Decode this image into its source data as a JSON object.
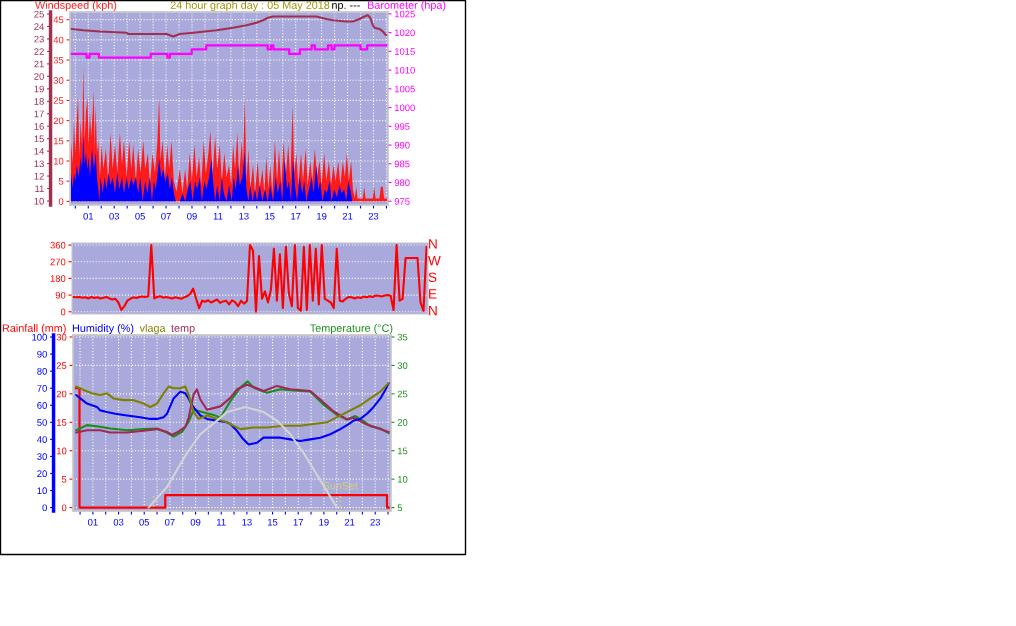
{
  "chart_data": [
    {
      "type": "area",
      "title": "24 hour graph day : 05 May 2018",
      "ylabel": "Windspeed (kph)",
      "y2label": "Barometer (hpa)",
      "annotations": [
        "np. ---"
      ],
      "xlim": [
        -0.41,
        24.12
      ],
      "xticks": [
        {
          "value": 0,
          "label": null
        },
        {
          "value": 1,
          "label": "01"
        },
        {
          "value": 2,
          "label": null
        },
        {
          "value": 3,
          "label": "03"
        },
        {
          "value": 4,
          "label": null
        },
        {
          "value": 5,
          "label": "05"
        },
        {
          "value": 6,
          "label": null
        },
        {
          "value": 7,
          "label": "07"
        },
        {
          "value": 8,
          "label": null
        },
        {
          "value": 9,
          "label": "09"
        },
        {
          "value": 10,
          "label": null
        },
        {
          "value": 11,
          "label": "11"
        },
        {
          "value": 12,
          "label": null
        },
        {
          "value": 13,
          "label": "13"
        },
        {
          "value": 14,
          "label": null
        },
        {
          "value": 15,
          "label": "15"
        },
        {
          "value": 16,
          "label": null
        },
        {
          "value": 17,
          "label": "17"
        },
        {
          "value": 18,
          "label": null
        },
        {
          "value": 19,
          "label": "19"
        },
        {
          "value": 20,
          "label": null
        },
        {
          "value": 21,
          "label": "21"
        },
        {
          "value": 22,
          "label": null
        },
        {
          "value": 23,
          "label": "23"
        },
        {
          "value": 24,
          "label": null
        }
      ],
      "ylim": [
        -0.9,
        46.9
      ],
      "yticks": [
        0,
        5,
        10,
        15,
        20,
        25,
        30,
        35,
        40,
        45
      ],
      "y2lim": [
        974.0,
        1025.5
      ],
      "y2ticks": [
        975,
        980,
        985,
        990,
        995,
        1000,
        1005,
        1010,
        1015,
        1020,
        1025
      ],
      "y3lim": [
        9.68,
        25.16
      ],
      "y3ticks": [
        10,
        11,
        12,
        13,
        14,
        15,
        16,
        17,
        18,
        19,
        20,
        21,
        22,
        23,
        24,
        25
      ],
      "grid": true,
      "series": [
        {
          "type": "area",
          "color": "#ff1a1a",
          "x": [
            -0.33,
            -0.2,
            -0.1,
            0.0,
            0.11,
            0.21,
            0.31,
            0.41,
            0.52,
            0.62,
            0.72,
            0.82,
            0.93,
            1.03,
            1.13,
            1.23,
            1.34,
            1.41,
            1.49,
            1.57,
            1.67,
            1.77,
            1.9,
            2.03,
            2.16,
            2.36,
            2.54,
            2.72,
            2.88,
            3.06,
            3.24,
            3.44,
            3.6,
            3.75,
            3.96,
            4.16,
            4.32,
            4.47,
            4.67,
            4.85,
            5.03,
            5.24,
            5.39,
            5.6,
            5.75,
            5.96,
            6.14,
            6.32,
            6.47,
            6.57,
            6.73,
            6.91,
            7.09,
            7.24,
            7.42,
            7.6,
            7.81,
            8.06,
            8.27,
            8.47,
            8.63,
            8.83,
            8.99,
            9.19,
            9.35,
            9.55,
            9.71,
            9.91,
            10.07,
            10.27,
            10.42,
            10.58,
            10.78,
            10.94,
            11.14,
            11.3,
            11.5,
            11.66,
            11.86,
            12.02,
            12.17,
            12.32,
            12.5,
            12.63,
            12.84,
            12.94,
            13.07,
            13.2,
            13.35,
            13.5,
            13.71,
            13.86,
            14.07,
            14.22,
            14.43,
            14.58,
            14.74,
            14.89,
            15.04,
            15.2,
            15.4,
            15.56,
            15.71,
            15.89,
            16.07,
            16.23,
            16.43,
            16.59,
            16.76,
            16.89,
            17.05,
            17.2,
            17.41,
            17.56,
            17.77,
            17.92,
            18.13,
            18.28,
            18.48,
            18.64,
            18.84,
            19.0,
            19.2,
            19.36,
            19.56,
            19.72,
            19.92,
            20.08,
            20.28,
            20.44,
            20.64,
            20.79,
            20.95,
            21.1,
            21.28,
            21.41,
            21.56,
            21.67,
            21.77,
            22.18,
            22.28,
            22.39,
            22.95,
            23.05,
            23.16,
            23.46,
            23.57,
            23.72,
            23.82,
            24.03,
            24.1
          ],
          "values": [
            14.6,
            9.5,
            20,
            12,
            20,
            25.7,
            11,
            20,
            14,
            33.1,
            15,
            22,
            25.7,
            14,
            22,
            16,
            22,
            27.5,
            13,
            23.8,
            12,
            15,
            6,
            14,
            8,
            13,
            5,
            17,
            8,
            14,
            7,
            17,
            9,
            15,
            6,
            15,
            8,
            14,
            5,
            13,
            7,
            15,
            8,
            12,
            4,
            12,
            7,
            14,
            25.7,
            10,
            15,
            6,
            14,
            8,
            15,
            5,
            2.4,
            8,
            2,
            8,
            3,
            12,
            5,
            14,
            6,
            11,
            4,
            15,
            7,
            12,
            17.5,
            6,
            16,
            8,
            14,
            5,
            12,
            6,
            9,
            4,
            14,
            8,
            17,
            6,
            15,
            9,
            25.7,
            5,
            13,
            3,
            9,
            2,
            10,
            3,
            8,
            2,
            11,
            3,
            9,
            2,
            15,
            5,
            13,
            4,
            15,
            6,
            14,
            5,
            23.7,
            7,
            12,
            4,
            12,
            5,
            13,
            4,
            10,
            5,
            13,
            6,
            10,
            4,
            12,
            5,
            10,
            4,
            9,
            5,
            10,
            4,
            10,
            6,
            12,
            5,
            10,
            3,
            0.7,
            3.6,
            0.7,
            0.7,
            3.6,
            0.7,
            0.7,
            3.6,
            0.7,
            0.7,
            3.6,
            3.6,
            0.7,
            0.7,
            5
          ]
        },
        {
          "type": "area",
          "color": "#0000ff",
          "x": [
            -0.33,
            -0.2,
            -0.1,
            0.0,
            0.11,
            0.26,
            0.41,
            0.52,
            0.62,
            0.72,
            0.82,
            0.93,
            1.03,
            1.13,
            1.29,
            1.44,
            1.57,
            1.67,
            1.8,
            1.85,
            1.95,
            2.11,
            2.26,
            2.42,
            2.57,
            2.72,
            2.88,
            3.06,
            3.24,
            3.39,
            3.6,
            3.75,
            3.96,
            4.11,
            4.32,
            4.47,
            4.67,
            4.85,
            5.03,
            5.19,
            5.39,
            5.55,
            5.75,
            5.91,
            6.06,
            6.21,
            6.47,
            6.63,
            6.78,
            6.93,
            7.14,
            7.29,
            7.45,
            7.6,
            7.75,
            8.06,
            8.27,
            8.47,
            8.68,
            8.88,
            9.04,
            9.24,
            9.4,
            9.6,
            9.76,
            9.96,
            10.12,
            10.32,
            10.5,
            10.63,
            10.78,
            10.94,
            11.14,
            11.3,
            11.45,
            11.66,
            11.86,
            12.07,
            12.22,
            12.38,
            12.55,
            12.68,
            12.89,
            13.07,
            13.2,
            13.35,
            13.5,
            13.66,
            13.86,
            14.02,
            14.22,
            14.43,
            14.63,
            14.84,
            15.04,
            15.25,
            15.46,
            15.61,
            15.81,
            15.97,
            16.15,
            16.33,
            16.48,
            16.64,
            16.79,
            16.94,
            17.1,
            17.3,
            17.51,
            17.66,
            17.82,
            18.02,
            18.23,
            18.38,
            18.59,
            18.74,
            18.9,
            19.05,
            19.25,
            19.41,
            19.61,
            19.77,
            19.97,
            20.18,
            20.38,
            20.54,
            20.74,
            20.9,
            21.05,
            21.21,
            21.36,
            24.1
          ],
          "values": [
            7,
            3.3,
            7,
            5,
            9,
            6,
            11,
            8,
            16.3,
            9,
            12,
            8,
            11,
            6,
            13,
            8,
            12,
            6,
            2,
            0,
            6,
            2,
            6,
            3,
            7,
            4,
            6,
            2,
            7,
            3,
            6,
            2,
            6,
            3,
            6,
            4,
            6,
            2,
            6,
            0,
            5,
            2,
            6,
            0,
            5,
            3,
            10.5,
            6,
            8,
            5,
            7,
            3,
            6,
            2,
            0,
            0,
            2,
            0,
            3,
            5,
            0,
            5,
            3,
            6,
            0,
            5,
            3,
            6,
            10.5,
            5,
            0,
            4,
            0,
            6,
            2,
            0,
            4,
            0,
            6,
            3,
            8.9,
            4,
            6,
            12.2,
            3,
            0,
            4,
            0,
            3,
            0,
            4,
            0,
            3,
            0,
            4,
            0,
            6,
            2,
            5,
            0,
            10.5,
            3,
            5,
            0,
            10.5,
            4,
            0,
            6,
            2,
            5,
            0,
            3,
            6,
            2,
            8.9,
            3,
            5,
            0,
            3,
            2,
            5,
            0,
            3,
            1,
            4,
            2,
            3,
            0,
            5,
            3,
            0,
            0
          ]
        },
        {
          "type": "step",
          "axis": "y2",
          "color": "#ff00ff",
          "x": [
            -0.28,
            0.87,
            1.1,
            1.82,
            5.82,
            7.1,
            7.3,
            8.98,
            10.1,
            14.84,
            15.1,
            15.28,
            16.5,
            17.33,
            18.23,
            18.48,
            19.49,
            19.77,
            19.99,
            22.0,
            22.51,
            24.05
          ],
          "values": [
            1014.3,
            1013.3,
            1014.3,
            1013.3,
            1014.3,
            1013.3,
            1014.3,
            1015.5,
            1016.6,
            1015.5,
            1016.6,
            1015.5,
            1014.3,
            1015.5,
            1016.6,
            1015.5,
            1016.6,
            1015.5,
            1016.6,
            1015.5,
            1016.6,
            1016.6
          ]
        },
        {
          "type": "line",
          "axis": "y3",
          "color": "#a03050",
          "x": [
            -0.28,
            0.62,
            1.9,
            3.96,
            4.08,
            5.75,
            7.04,
            7.55,
            8.06,
            9.09,
            10.89,
            12.17,
            13.2,
            13.97,
            14.48,
            14.86,
            15.25,
            16.02,
            18.59,
            19.36,
            19.87,
            20.9,
            21.41,
            21.92,
            22.31,
            22.56,
            22.75,
            22.95,
            23.08,
            23.46,
            23.72,
            23.98
          ],
          "values": [
            23.8,
            23.7,
            23.6,
            23.5,
            23.4,
            23.4,
            23.4,
            23.2,
            23.4,
            23.5,
            23.7,
            23.9,
            24.1,
            24.3,
            24.5,
            24.7,
            24.8,
            24.8,
            24.8,
            24.6,
            24.5,
            24.4,
            24.4,
            24.6,
            24.8,
            24.9,
            24.7,
            24.1,
            23.9,
            23.8,
            23.6,
            23.3
          ]
        }
      ]
    },
    {
      "type": "line",
      "categories": [
        null,
        null,
        null,
        null,
        null,
        null,
        null,
        null,
        null,
        null,
        null,
        null,
        null,
        null,
        null,
        null,
        null,
        null,
        null,
        null,
        null,
        null,
        null,
        null,
        null,
        null,
        null,
        null,
        null,
        null,
        null,
        null,
        null,
        null,
        null,
        null,
        null,
        null,
        null,
        null,
        null,
        null,
        null,
        null,
        null,
        null,
        null,
        null,
        null,
        null,
        null,
        null,
        null,
        null,
        null,
        null,
        null,
        null,
        null,
        null,
        null,
        null,
        null,
        null,
        null,
        null,
        null,
        null,
        null,
        null,
        null,
        null,
        null,
        null,
        null,
        null,
        null,
        null,
        null,
        null,
        null,
        null,
        null,
        null,
        null,
        null,
        null,
        null,
        null,
        null,
        null,
        null,
        null,
        null,
        null,
        null,
        null,
        null,
        null,
        null,
        null,
        null,
        null,
        null,
        null,
        null,
        null,
        null,
        null,
        null,
        null,
        null,
        null,
        null,
        null,
        null,
        null,
        null,
        null
      ],
      "ylim": [
        -12,
        371
      ],
      "yticks": [
        0,
        90,
        180,
        270,
        360
      ],
      "annotations": [
        "N",
        "W",
        "S",
        "E",
        "N"
      ],
      "grid": true,
      "series": [
        {
          "color": "#ff0000",
          "values": [
            80,
            78,
            80,
            76,
            78,
            72,
            80,
            74,
            78,
            72,
            76,
            80,
            72,
            66,
            70,
            50,
            10,
            30,
            60,
            70,
            78,
            74,
            80,
            82,
            80,
            84,
            360,
            72,
            80,
            84,
            76,
            80,
            76,
            72,
            78,
            74,
            70,
            78,
            84,
            96,
            125,
            70,
            20,
            60,
            54,
            62,
            50,
            58,
            66,
            48,
            56,
            60,
            40,
            62,
            52,
            30,
            60,
            44,
            58,
            360,
            330,
            0,
            300,
            70,
            110,
            50,
            120,
            340,
            60,
            310,
            20,
            350,
            100,
            30,
            360,
            20,
            5,
            350,
            10,
            360,
            60,
            340,
            40,
            360,
            70,
            60,
            50,
            20,
            340,
            60,
            56,
            70,
            80,
            78,
            72,
            78,
            74,
            82,
            78,
            84,
            80,
            88,
            86,
            82,
            88,
            90,
            86,
            10,
            360,
            60,
            70,
            290,
            290,
            290,
            290,
            290,
            50,
            5,
            350
          ]
        }
      ]
    },
    {
      "type": "line",
      "xlim": [
        -0.55,
        24.23
      ],
      "xticks": [
        {
          "value": 0,
          "label": null
        },
        {
          "value": 1,
          "label": "01"
        },
        {
          "value": 2,
          "label": null
        },
        {
          "value": 3,
          "label": "03"
        },
        {
          "value": 4,
          "label": null
        },
        {
          "value": 5,
          "label": "05"
        },
        {
          "value": 6,
          "label": null
        },
        {
          "value": 7,
          "label": "07"
        },
        {
          "value": 8,
          "label": null
        },
        {
          "value": 9,
          "label": "09"
        },
        {
          "value": 10,
          "label": null
        },
        {
          "value": 11,
          "label": "11"
        },
        {
          "value": 12,
          "label": null
        },
        {
          "value": 13,
          "label": "13"
        },
        {
          "value": 14,
          "label": null
        },
        {
          "value": 15,
          "label": "15"
        },
        {
          "value": 16,
          "label": null
        },
        {
          "value": 17,
          "label": "17"
        },
        {
          "value": 18,
          "label": null
        },
        {
          "value": 19,
          "label": "19"
        },
        {
          "value": 20,
          "label": null
        },
        {
          "value": 21,
          "label": "21"
        },
        {
          "value": 22,
          "label": null
        },
        {
          "value": 23,
          "label": "23"
        },
        {
          "value": 24,
          "label": null
        }
      ],
      "ylim": [
        -0.6,
        30.35
      ],
      "yticks": [
        0,
        5,
        10,
        15,
        20,
        25,
        30
      ],
      "y2lim": [
        4.4,
        35.35
      ],
      "y2ticks": [
        5,
        10,
        15,
        20,
        25,
        30,
        35
      ],
      "y3lim": [
        -2.0,
        101.2
      ],
      "y3ticks": [
        0,
        10,
        20,
        30,
        40,
        50,
        60,
        70,
        80,
        90,
        100
      ],
      "grid": true,
      "ref_lines": [
        {
          "axis": "x",
          "value": 5.73,
          "color": "#d2d278",
          "line_style": "dotted"
        },
        {
          "axis": "x",
          "value": 20.28,
          "label": "SunSet",
          "color": "#d2d278",
          "line_style": "dotted"
        }
      ],
      "series": [
        {
          "name": "Rainfall (mm)",
          "type": "step",
          "color": "#ff0000",
          "x": [
            -0.3,
            -0.04,
            6.64,
            23.92,
            24.05
          ],
          "values": [
            21,
            0,
            2.2,
            0,
            0
          ]
        },
        {
          "name": "Humidity (%)",
          "axis": "y3",
          "color": "#0000ff",
          "x": [
            -0.3,
            0.02,
            0.54,
            1.32,
            1.57,
            2.1,
            2.74,
            3.66,
            4.69,
            5.47,
            5.99,
            6.51,
            6.77,
            7.29,
            7.81,
            8.2,
            8.46,
            8.72,
            9.37,
            9.89,
            10.67,
            11.45,
            11.71,
            12.23,
            12.62,
            13.13,
            13.79,
            14.3,
            14.96,
            15.6,
            16.38,
            17.16,
            17.94,
            18.72,
            19.5,
            20.28,
            20.93,
            21.32,
            21.84,
            22.36,
            22.88,
            23.4,
            23.79,
            24.05
          ],
          "values": [
            66,
            64,
            61,
            59,
            57,
            56,
            55,
            54,
            53,
            52,
            52,
            53,
            55,
            64,
            68,
            67,
            64,
            60,
            54,
            52,
            51,
            50,
            49,
            45,
            41,
            37,
            38,
            41,
            41,
            41,
            40,
            39,
            40,
            41,
            43,
            46,
            49,
            51,
            52,
            55,
            59,
            64,
            69,
            73
          ]
        },
        {
          "name": "vlaga",
          "axis": "y3",
          "color": "#808000",
          "x": [
            -0.3,
            0.27,
            0.93,
            1.57,
            2.1,
            2.61,
            3.39,
            4.17,
            4.95,
            5.47,
            5.99,
            6.51,
            6.9,
            7.29,
            7.81,
            8.2,
            8.46,
            8.85,
            9.24,
            9.89,
            10.67,
            11.45,
            12.49,
            13.52,
            14.57,
            15.86,
            17.16,
            18.2,
            19.24,
            19.76,
            20.8,
            21.84,
            22.62,
            23.4,
            24.05
          ],
          "values": [
            71,
            69,
            67,
            66,
            67,
            64,
            63,
            63,
            61,
            59,
            61,
            67,
            71,
            70,
            70,
            71,
            66,
            56,
            52,
            54,
            52,
            50,
            46,
            47,
            47,
            48,
            48,
            49,
            50,
            52,
            56,
            60,
            64,
            68,
            73
          ]
        },
        {
          "name": "Temperature (°C)",
          "axis": "y2",
          "color": "#1a8c1a",
          "x": [
            -0.3,
            0.54,
            1.57,
            2.35,
            3.66,
            4.95,
            5.99,
            6.77,
            7.29,
            7.94,
            8.46,
            8.85,
            9.37,
            10.41,
            10.93,
            11.71,
            12.49,
            13.06,
            13.52,
            14.57,
            15.6,
            16.64,
            17.94,
            18.98,
            20.02,
            20.8,
            21.45,
            22.1,
            22.62,
            23.4,
            24.05
          ],
          "values": [
            18.6,
            19.5,
            19.2,
            18.9,
            18.6,
            18.8,
            18.9,
            18.2,
            17.5,
            18.3,
            20.1,
            22.2,
            21.9,
            21.3,
            20.8,
            23.7,
            26.1,
            27.2,
            26.1,
            25.2,
            25.8,
            25.6,
            25.4,
            23.1,
            21.3,
            20.5,
            21.1,
            20.2,
            19.3,
            18.9,
            18.1
          ]
        },
        {
          "name": "temp",
          "axis": "y2",
          "color": "#a02858",
          "x": [
            -0.3,
            0.54,
            1.57,
            2.35,
            3.66,
            4.95,
            5.99,
            6.77,
            7.16,
            7.55,
            8.2,
            8.46,
            8.85,
            9.11,
            9.37,
            9.89,
            10.93,
            11.71,
            12.23,
            13.01,
            13.52,
            14.3,
            15.35,
            16.38,
            17.94,
            18.72,
            19.76,
            20.8,
            21.32,
            22.36,
            22.88,
            24.05
          ],
          "values": [
            18.2,
            18.6,
            18.6,
            18.2,
            18.2,
            18.5,
            18.8,
            18.3,
            17.8,
            18.2,
            19.2,
            20.8,
            24.9,
            25.8,
            24.0,
            22.2,
            22.8,
            24.3,
            25.8,
            26.6,
            26.2,
            25.5,
            26.4,
            25.8,
            25.5,
            24.0,
            21.9,
            20.5,
            20.8,
            19.6,
            19.2,
            18.3
          ]
        },
        {
          "axis": "y3",
          "color": "#d4d4d4",
          "x": [
            5.34,
            6.77,
            8.33,
            9.37,
            10.67,
            11.45,
            12.88,
            14.3,
            15.35,
            16.38,
            17.42,
            18.72,
            20.02
          ],
          "values": [
            0,
            12,
            32,
            43,
            51,
            56,
            59,
            56,
            51,
            43,
            32,
            16,
            0
          ]
        }
      ]
    }
  ]
}
